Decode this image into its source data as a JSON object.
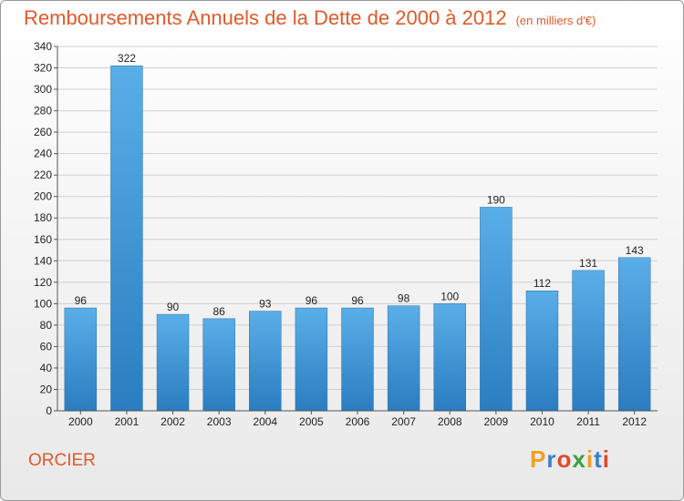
{
  "title": "Remboursements Annuels de la Dette de 2000 à 2012",
  "unit": "(en milliers d'€)",
  "commune": "ORCIER",
  "logo": {
    "text": "Proxiti",
    "letters": [
      {
        "ch": "P",
        "color": "#f0a020"
      },
      {
        "ch": "r",
        "color": "#3a7fd0"
      },
      {
        "ch": "o",
        "color": "#e04a2a"
      },
      {
        "ch": "x",
        "color": "#3aa040"
      },
      {
        "ch": "i",
        "color": "#f0a020"
      },
      {
        "ch": "t",
        "color": "#3a7fd0"
      },
      {
        "ch": "i",
        "color": "#e04a2a"
      }
    ]
  },
  "colors": {
    "title": "#e05a2a",
    "bar_top": "#5aaee8",
    "bar_bottom": "#2a7dc0",
    "grid": "#d0d0d0",
    "axis_text": "#222222"
  },
  "chart_data": {
    "type": "bar",
    "title": "Remboursements Annuels de la Dette de 2000 à 2012",
    "categories": [
      "2000",
      "2001",
      "2002",
      "2003",
      "2004",
      "2005",
      "2006",
      "2007",
      "2008",
      "2009",
      "2010",
      "2011",
      "2012"
    ],
    "values": [
      96,
      322,
      90,
      86,
      93,
      96,
      96,
      98,
      100,
      190,
      112,
      131,
      143
    ],
    "xlabel": "",
    "ylabel": "",
    "ylim": [
      0,
      340
    ],
    "ytick_step": 20,
    "grid": true,
    "legend": "none"
  }
}
